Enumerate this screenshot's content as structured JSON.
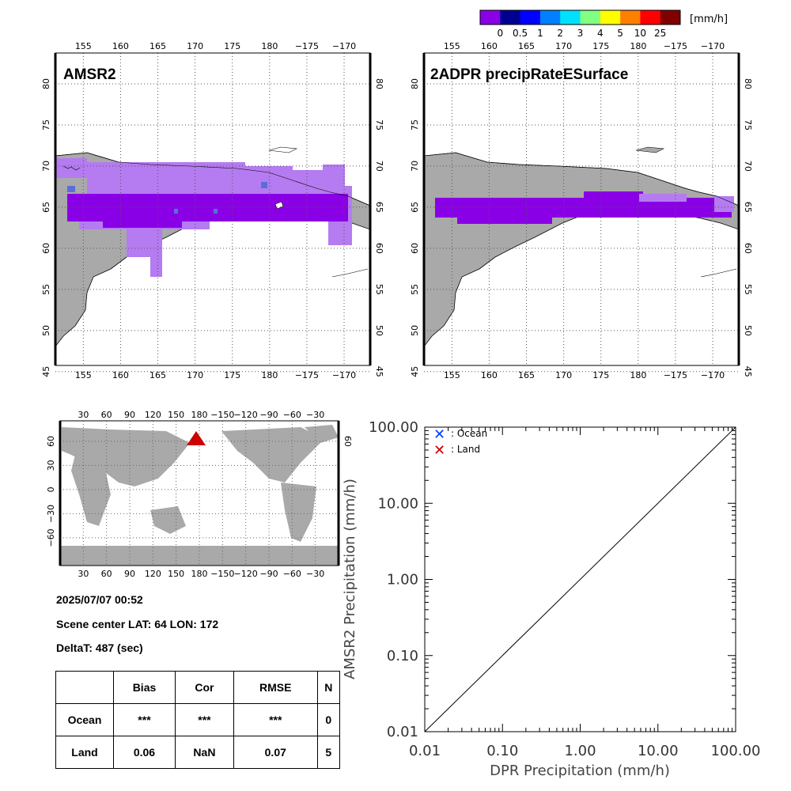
{
  "colorbar": {
    "unit": "[mm/h]",
    "colors": [
      "#8a00e6",
      "#000090",
      "#0000ff",
      "#0080ff",
      "#00e0ff",
      "#80ff80",
      "#ffff00",
      "#ff8000",
      "#ff0000",
      "#800000"
    ],
    "labels": [
      "0",
      "0.5",
      "1",
      "2",
      "3",
      "4",
      "5",
      "10",
      "25"
    ]
  },
  "maps": {
    "lon_ticks": [
      "155",
      "160",
      "165",
      "170",
      "175",
      "180",
      "−175",
      "−170"
    ],
    "lat_ticks": [
      "80",
      "75",
      "70",
      "65",
      "60",
      "55",
      "50",
      "45"
    ],
    "left_title": "AMSR2",
    "right_title": "2ADPR precipRateESurface"
  },
  "world": {
    "lon_ticks": [
      "30",
      "60",
      "90",
      "120",
      "150",
      "180",
      "−150",
      "−120",
      "−90",
      "−60",
      "−30"
    ],
    "lat_ticks": [
      "60",
      "30",
      "0",
      "−30",
      "−60"
    ],
    "right_lat_tick": "60",
    "marker_color": "#cc0000"
  },
  "info": {
    "datetime": "2025/07/07 00:52",
    "scene_center": "Scene center LAT: 64   LON: 172",
    "delta": "DeltaT:  487 (sec)"
  },
  "stats": {
    "headers": [
      "",
      "Bias",
      "Cor",
      "RMSE",
      "N"
    ],
    "rows": [
      {
        "label": "Ocean",
        "bias": "***",
        "cor": "***",
        "rmse": "***",
        "n": "0"
      },
      {
        "label": "Land",
        "bias": "0.06",
        "cor": "NaN",
        "rmse": "0.07",
        "n": "5"
      }
    ]
  },
  "chart_data": {
    "type": "scatter",
    "xlabel": "DPR Precipitation (mm/h)",
    "ylabel": "AMSR2 Precipitation (mm/h)",
    "x_scale": "log",
    "y_scale": "log",
    "xlim": [
      0.01,
      100
    ],
    "ylim": [
      0.01,
      100
    ],
    "x_tick_labels": [
      "0.01",
      "0.10",
      "1.00",
      "10.00",
      "100.00"
    ],
    "y_tick_labels": [
      "0.01",
      "0.10",
      "1.00",
      "10.00",
      "100.00"
    ],
    "series": [
      {
        "name": ": Ocean",
        "color": "#0040ff",
        "marker": "x",
        "points": []
      },
      {
        "name": ": Land",
        "color": "#cc0000",
        "marker": "x",
        "points": []
      }
    ],
    "reference_line": "1:1",
    "legend": "top-left"
  }
}
